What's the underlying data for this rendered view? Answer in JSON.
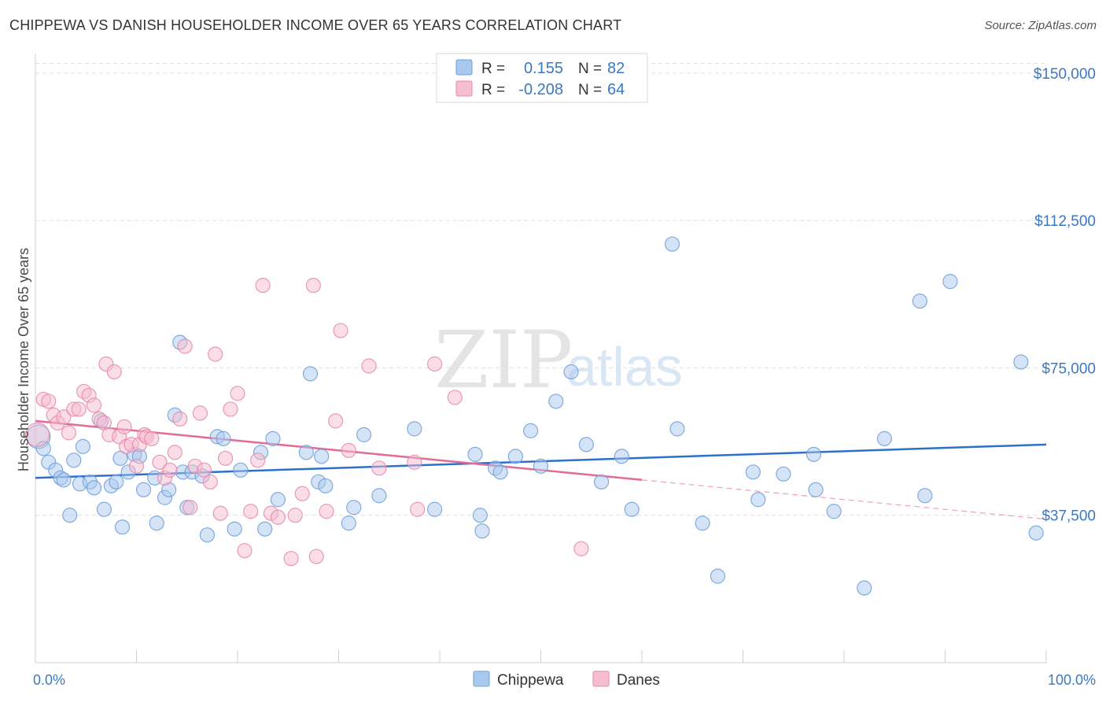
{
  "header": {
    "title": "CHIPPEWA VS DANISH HOUSEHOLDER INCOME OVER 65 YEARS CORRELATION CHART",
    "source": "Source: ZipAtlas.com"
  },
  "watermark": {
    "zip": "ZIP",
    "atlas": "atlas"
  },
  "stats": {
    "rows": [
      {
        "r_label": "R =",
        "r_value": "0.155",
        "n_label": "N =",
        "n_value": "82",
        "color": "#a9c8ee",
        "stroke": "#6f9fd8"
      },
      {
        "r_label": "R =",
        "r_value": "-0.208",
        "n_label": "N =",
        "n_value": "64",
        "color": "#f6bcd0",
        "stroke": "#e58aa9"
      }
    ]
  },
  "legend": {
    "items": [
      {
        "label": "Chippewa",
        "color": "#a9c8ee",
        "stroke": "#6f9fd8"
      },
      {
        "label": "Danes",
        "color": "#f6bcd0",
        "stroke": "#e58aa9"
      }
    ]
  },
  "chart_data": {
    "type": "scatter",
    "title": "CHIPPEWA VS DANISH HOUSEHOLDER INCOME OVER 65 YEARS CORRELATION CHART",
    "xlabel": "",
    "ylabel": "Householder Income Over 65 years",
    "xlim": [
      0,
      100
    ],
    "ylim": [
      0,
      155000
    ],
    "x_tick_labels": [
      "0.0%",
      "100.0%"
    ],
    "y_ticks": [
      37500,
      75000,
      112500,
      150000
    ],
    "y_tick_labels": [
      "$37,500",
      "$75,000",
      "$112,500",
      "$150,000"
    ],
    "grid": true,
    "legend_position": "bottom",
    "series": [
      {
        "name": "Chippewa",
        "color": "#6f9fd8",
        "fill": "#a9c8ee",
        "trend": {
          "x": [
            0,
            100
          ],
          "y": [
            47000,
            55500
          ],
          "color": "#2e6fc9"
        },
        "points": [
          [
            0.3,
            57500
          ],
          [
            0.8,
            54500
          ],
          [
            1.3,
            51000
          ],
          [
            2.0,
            49000
          ],
          [
            2.5,
            47000
          ],
          [
            2.8,
            46500
          ],
          [
            3.4,
            37500
          ],
          [
            3.8,
            51500
          ],
          [
            4.4,
            45500
          ],
          [
            4.7,
            55000
          ],
          [
            5.4,
            46000
          ],
          [
            5.8,
            44500
          ],
          [
            6.5,
            61500
          ],
          [
            6.8,
            39000
          ],
          [
            7.5,
            45000
          ],
          [
            8.0,
            46000
          ],
          [
            8.4,
            52000
          ],
          [
            8.6,
            34500
          ],
          [
            9.2,
            48500
          ],
          [
            9.8,
            53000
          ],
          [
            10.3,
            52500
          ],
          [
            10.7,
            44000
          ],
          [
            11.8,
            47000
          ],
          [
            12.0,
            35500
          ],
          [
            12.8,
            42000
          ],
          [
            13.2,
            44000
          ],
          [
            13.8,
            63000
          ],
          [
            14.3,
            81500
          ],
          [
            14.6,
            48500
          ],
          [
            15.0,
            39500
          ],
          [
            15.5,
            48500
          ],
          [
            16.5,
            47500
          ],
          [
            17.0,
            32500
          ],
          [
            18.0,
            57500
          ],
          [
            18.6,
            57000
          ],
          [
            19.7,
            34000
          ],
          [
            20.3,
            49000
          ],
          [
            22.3,
            53500
          ],
          [
            22.7,
            34000
          ],
          [
            23.5,
            57000
          ],
          [
            24.0,
            41500
          ],
          [
            26.8,
            53500
          ],
          [
            27.2,
            73500
          ],
          [
            28.0,
            46000
          ],
          [
            28.3,
            52500
          ],
          [
            28.7,
            45000
          ],
          [
            31.0,
            35500
          ],
          [
            31.5,
            39500
          ],
          [
            32.5,
            58000
          ],
          [
            34.0,
            42500
          ],
          [
            37.5,
            59500
          ],
          [
            39.5,
            39000
          ],
          [
            43.5,
            53000
          ],
          [
            44.0,
            37500
          ],
          [
            44.2,
            33500
          ],
          [
            45.5,
            49500
          ],
          [
            46.0,
            48500
          ],
          [
            47.5,
            52500
          ],
          [
            49.0,
            59000
          ],
          [
            50.0,
            50000
          ],
          [
            51.5,
            66500
          ],
          [
            53.0,
            74000
          ],
          [
            54.5,
            55500
          ],
          [
            56.0,
            46000
          ],
          [
            58.0,
            52500
          ],
          [
            59.0,
            39000
          ],
          [
            63.0,
            106500
          ],
          [
            63.5,
            59500
          ],
          [
            66.0,
            35500
          ],
          [
            67.5,
            22000
          ],
          [
            71.0,
            48500
          ],
          [
            71.5,
            41500
          ],
          [
            74.0,
            48000
          ],
          [
            77.0,
            53000
          ],
          [
            77.2,
            44000
          ],
          [
            79.0,
            38500
          ],
          [
            82.0,
            19000
          ],
          [
            84.0,
            57000
          ],
          [
            87.5,
            92000
          ],
          [
            88.0,
            42500
          ],
          [
            90.5,
            97000
          ],
          [
            97.5,
            76500
          ],
          [
            99.0,
            33000
          ]
        ]
      },
      {
        "name": "Danes",
        "color": "#e58aa9",
        "fill": "#f6bcd0",
        "trend": {
          "x": [
            0,
            60
          ],
          "y": [
            61500,
            46500
          ],
          "color": "#e36b96"
        },
        "trend_dashed": {
          "x": [
            60,
            100
          ],
          "y": [
            46500,
            36500
          ],
          "color": "#efa7c0"
        },
        "points": [
          [
            0.2,
            58000
          ],
          [
            0.8,
            67000
          ],
          [
            1.3,
            66500
          ],
          [
            1.8,
            63000
          ],
          [
            2.2,
            61000
          ],
          [
            2.8,
            62500
          ],
          [
            3.3,
            58500
          ],
          [
            3.8,
            64500
          ],
          [
            4.3,
            64500
          ],
          [
            4.8,
            69000
          ],
          [
            5.3,
            68000
          ],
          [
            5.8,
            65500
          ],
          [
            6.3,
            62000
          ],
          [
            6.8,
            61000
          ],
          [
            7.0,
            76000
          ],
          [
            7.3,
            58000
          ],
          [
            7.8,
            74000
          ],
          [
            8.3,
            57500
          ],
          [
            8.8,
            60000
          ],
          [
            9.0,
            55000
          ],
          [
            9.5,
            55500
          ],
          [
            10.0,
            50000
          ],
          [
            10.3,
            55500
          ],
          [
            10.8,
            58000
          ],
          [
            11.0,
            57500
          ],
          [
            11.5,
            57000
          ],
          [
            12.3,
            51000
          ],
          [
            12.8,
            47000
          ],
          [
            13.3,
            49000
          ],
          [
            13.8,
            53500
          ],
          [
            14.3,
            62000
          ],
          [
            14.8,
            80500
          ],
          [
            15.3,
            39500
          ],
          [
            15.8,
            50000
          ],
          [
            16.3,
            63500
          ],
          [
            16.7,
            49000
          ],
          [
            17.3,
            46000
          ],
          [
            17.8,
            78500
          ],
          [
            18.3,
            38000
          ],
          [
            18.8,
            52000
          ],
          [
            19.3,
            64500
          ],
          [
            20.0,
            68500
          ],
          [
            20.7,
            28500
          ],
          [
            21.3,
            38500
          ],
          [
            22.0,
            51500
          ],
          [
            22.5,
            96000
          ],
          [
            23.3,
            38000
          ],
          [
            24.0,
            37000
          ],
          [
            25.3,
            26500
          ],
          [
            25.7,
            37500
          ],
          [
            26.4,
            43000
          ],
          [
            27.5,
            96000
          ],
          [
            27.8,
            27000
          ],
          [
            28.8,
            38500
          ],
          [
            29.7,
            61500
          ],
          [
            30.2,
            84500
          ],
          [
            31.0,
            54000
          ],
          [
            33.0,
            75500
          ],
          [
            34.0,
            49500
          ],
          [
            37.5,
            51000
          ],
          [
            37.8,
            39000
          ],
          [
            39.5,
            76000
          ],
          [
            41.5,
            67500
          ],
          [
            54.0,
            29000
          ]
        ]
      }
    ]
  }
}
